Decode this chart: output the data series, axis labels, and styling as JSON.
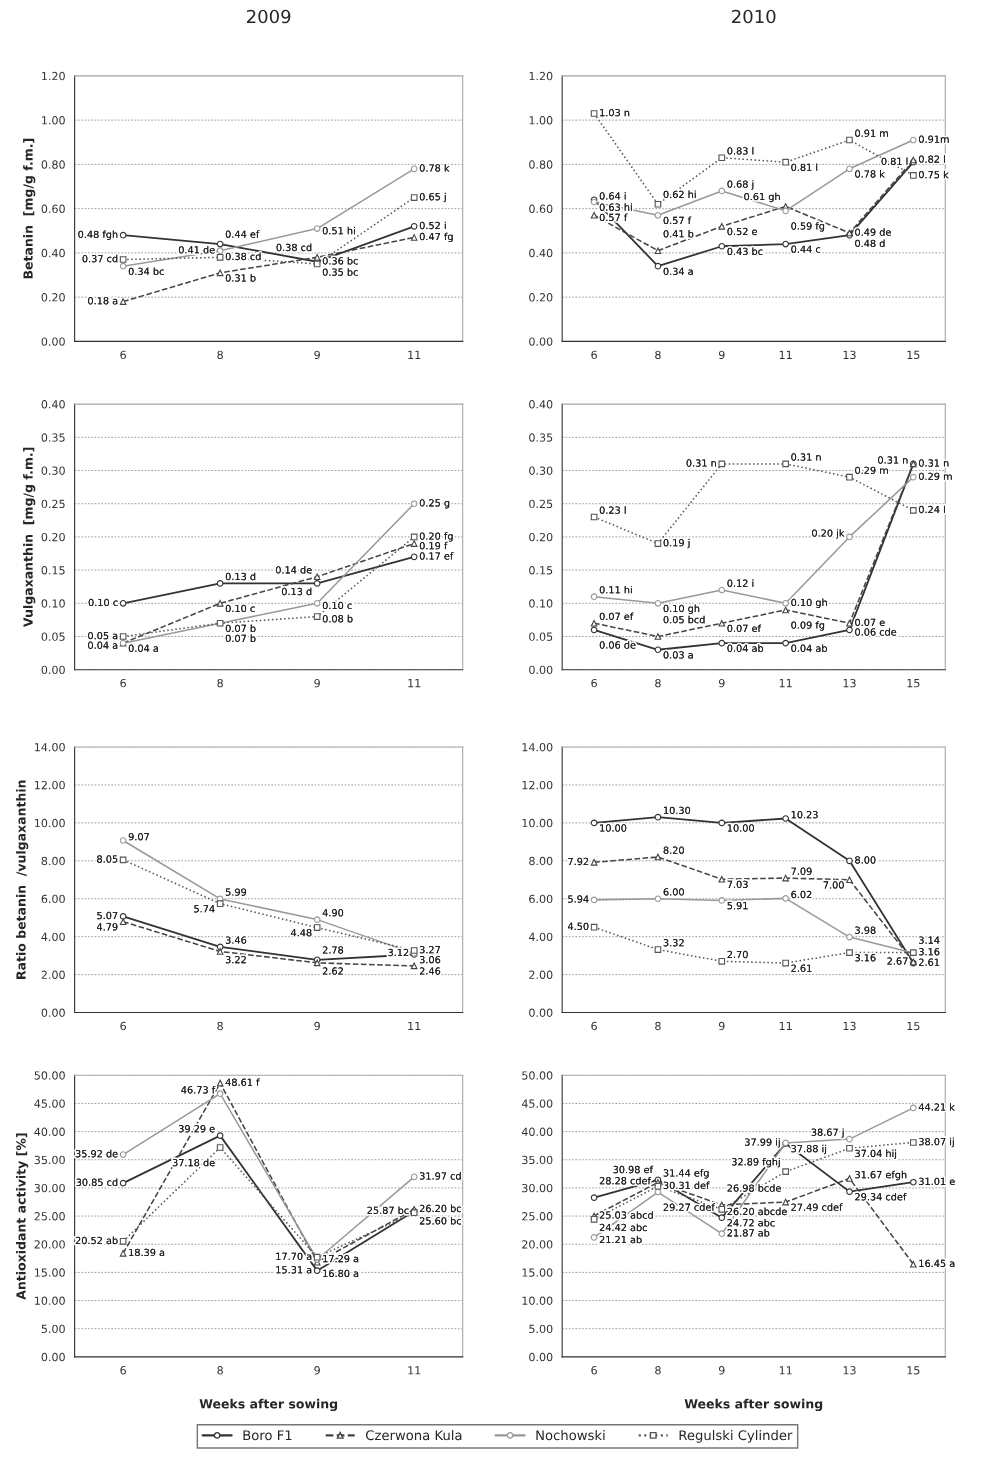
{
  "chart_data": [
    {
      "type": "line",
      "title": "2009",
      "ylabel": "Betanin  [mg/g f.m.]",
      "categories": [
        "6",
        "8",
        "9",
        "11"
      ],
      "ylim": [
        0,
        1.2
      ],
      "yticks": [
        {
          "value": 0,
          "label": "0.00"
        },
        {
          "value": 0.2,
          "label": "0.20"
        },
        {
          "value": 0.4,
          "label": "0.40"
        },
        {
          "value": 0.6,
          "label": "0.60"
        },
        {
          "value": 0.8,
          "label": "0.80"
        },
        {
          "value": 1.0,
          "label": "1.00"
        },
        {
          "value": 1.2,
          "label": "1.20"
        }
      ],
      "grid": "y",
      "series": [
        {
          "color": "#333333",
          "line_style": "solid",
          "marker": "circle",
          "values": [
            0.48,
            0.44,
            0.36,
            0.52
          ],
          "value_labels": [
            "0.48 fgh",
            "0.44 ef",
            "0.36 bc",
            "0.52 i"
          ]
        },
        {
          "color": "#444444",
          "line_style": "dashed",
          "marker": "triangle",
          "values": [
            0.18,
            0.31,
            0.38,
            0.47
          ],
          "value_labels": [
            "0.18 a",
            "0.31 b",
            "0.38 cd",
            "0.47 fg"
          ]
        },
        {
          "color": "#999999",
          "line_style": "solid",
          "marker": "circle",
          "values": [
            0.34,
            0.41,
            0.51,
            0.78
          ],
          "value_labels": [
            "0.34 bc",
            "0.41 de",
            "0.51 hi",
            "0.78 k"
          ]
        },
        {
          "color": "#555555",
          "line_style": "dotted",
          "marker": "square",
          "values": [
            0.37,
            0.38,
            0.35,
            0.65
          ],
          "value_labels": [
            "0.37 cd",
            "0.38 cd",
            "0.35 bc",
            "0.65 j"
          ]
        }
      ]
    },
    {
      "type": "line",
      "title": "2010",
      "categories": [
        "6",
        "8",
        "9",
        "11",
        "13",
        "15"
      ],
      "ylim": [
        0,
        1.2
      ],
      "yticks": [
        {
          "value": 0,
          "label": "0.00"
        },
        {
          "value": 0.2,
          "label": "0.20"
        },
        {
          "value": 0.4,
          "label": "0.40"
        },
        {
          "value": 0.6,
          "label": "0.60"
        },
        {
          "value": 0.8,
          "label": "0.80"
        },
        {
          "value": 1.0,
          "label": "1.00"
        },
        {
          "value": 1.2,
          "label": "1.20"
        }
      ],
      "grid": "y",
      "series": [
        {
          "color": "#333333",
          "line_style": "solid",
          "marker": "circle",
          "values": [
            0.64,
            0.34,
            0.43,
            0.44,
            0.48,
            0.81
          ],
          "value_labels": [
            "0.64 i",
            "0.34 a",
            "0.43 bc",
            "0.44 c",
            "0.48 d",
            "0.81 l"
          ]
        },
        {
          "color": "#444444",
          "line_style": "dashed",
          "marker": "triangle",
          "values": [
            0.57,
            0.41,
            0.52,
            0.61,
            0.49,
            0.82
          ],
          "value_labels": [
            "0.57 f",
            "0.41 b",
            "0.52 e",
            "0.61 gh",
            "0.49 de",
            "0.82 l"
          ]
        },
        {
          "color": "#999999",
          "line_style": "solid",
          "marker": "circle",
          "values": [
            0.63,
            0.57,
            0.68,
            0.59,
            0.78,
            0.91
          ],
          "value_labels": [
            "0.63 hi",
            "0.57 f",
            "0.68 j",
            "0.59 fg",
            "0.78 k",
            "0.91m"
          ]
        },
        {
          "color": "#555555",
          "line_style": "dotted",
          "marker": "square",
          "values": [
            1.03,
            0.62,
            0.83,
            0.81,
            0.91,
            0.75
          ],
          "value_labels": [
            "1.03 n",
            "0.62 hi",
            "0.83 l",
            "0.81 l",
            "0.91 m",
            "0.75 k"
          ]
        }
      ]
    },
    {
      "type": "line",
      "ylabel": "Vulgaxanthin  [mg/g f.m.]",
      "categories": [
        "6",
        "8",
        "9",
        "11"
      ],
      "ylim": [
        0,
        0.4
      ],
      "yticks": [
        {
          "value": 0,
          "label": "0.00"
        },
        {
          "value": 0.05,
          "label": "0.05"
        },
        {
          "value": 0.1,
          "label": "0.10"
        },
        {
          "value": 0.15,
          "label": "0.15"
        },
        {
          "value": 0.2,
          "label": "0.20"
        },
        {
          "value": 0.25,
          "label": "0.25"
        },
        {
          "value": 0.3,
          "label": "0.30"
        },
        {
          "value": 0.35,
          "label": "0.35"
        },
        {
          "value": 0.4,
          "label": "0.40"
        }
      ],
      "grid": "y",
      "series": [
        {
          "color": "#333333",
          "line_style": "solid",
          "marker": "circle",
          "values": [
            0.1,
            0.13,
            0.13,
            0.17
          ],
          "value_labels": [
            "0.10 c",
            "0.13 d",
            "0.13 d",
            "0.17 ef"
          ]
        },
        {
          "color": "#444444",
          "line_style": "dashed",
          "marker": "triangle",
          "values": [
            0.04,
            0.1,
            0.14,
            0.19
          ],
          "value_labels": [
            "0.04 a",
            "0.10 c",
            "0.14 de",
            "0.19 f"
          ]
        },
        {
          "color": "#999999",
          "line_style": "solid",
          "marker": "circle",
          "values": [
            0.04,
            0.07,
            0.1,
            0.25
          ],
          "value_labels": [
            "0.04 a",
            "0.07 b",
            "0.10 c",
            "0.25 g"
          ]
        },
        {
          "color": "#555555",
          "line_style": "dotted",
          "marker": "square",
          "values": [
            0.05,
            0.07,
            0.08,
            0.2
          ],
          "value_labels": [
            "0.05 a",
            "0.07 b",
            "0.08 b",
            "0.20 fg"
          ]
        }
      ]
    },
    {
      "type": "line",
      "categories": [
        "6",
        "8",
        "9",
        "11",
        "13",
        "15"
      ],
      "ylim": [
        0,
        0.4
      ],
      "yticks": [
        {
          "value": 0,
          "label": "0.00"
        },
        {
          "value": 0.05,
          "label": "0.05"
        },
        {
          "value": 0.1,
          "label": "0.10"
        },
        {
          "value": 0.15,
          "label": "0.15"
        },
        {
          "value": 0.2,
          "label": "0.20"
        },
        {
          "value": 0.25,
          "label": "0.25"
        },
        {
          "value": 0.3,
          "label": "0.30"
        },
        {
          "value": 0.35,
          "label": "0.35"
        },
        {
          "value": 0.4,
          "label": "0.40"
        }
      ],
      "grid": "y",
      "series": [
        {
          "color": "#333333",
          "line_style": "solid",
          "marker": "circle",
          "values": [
            0.06,
            0.03,
            0.04,
            0.04,
            0.06,
            0.31
          ],
          "value_labels": [
            "0.06 de",
            "0.03 a",
            "0.04 ab",
            "0.04 ab",
            "0.06 cde",
            "0.31 n"
          ]
        },
        {
          "color": "#444444",
          "line_style": "dashed",
          "marker": "triangle",
          "values": [
            0.07,
            0.05,
            0.07,
            0.09,
            0.07,
            0.31
          ],
          "value_labels": [
            "0.07 ef",
            "0.05 bcd",
            "0.07 ef",
            "0.09 fg",
            "0.07 e",
            "0.31 n"
          ]
        },
        {
          "color": "#999999",
          "line_style": "solid",
          "marker": "circle",
          "values": [
            0.11,
            0.1,
            0.12,
            0.1,
            0.2,
            0.29
          ],
          "value_labels": [
            "0.11 hi",
            "0.10 gh",
            "0.12 i",
            "0.10 gh",
            "0.20 jk",
            "0.29 m"
          ]
        },
        {
          "color": "#555555",
          "line_style": "dotted",
          "marker": "square",
          "values": [
            0.23,
            0.19,
            0.31,
            0.31,
            0.29,
            0.24
          ],
          "value_labels": [
            "0.23 l",
            "0.19 j",
            "0.31 n",
            "0.31 n",
            "0.29 m",
            "0.24 l"
          ]
        }
      ]
    },
    {
      "type": "line",
      "ylabel": "Ratio betanin  /vulgaxanthin",
      "categories": [
        "6",
        "8",
        "9",
        "11"
      ],
      "ylim": [
        0,
        14
      ],
      "yticks": [
        {
          "value": 0,
          "label": "0.00"
        },
        {
          "value": 2,
          "label": "2.00"
        },
        {
          "value": 4,
          "label": "4.00"
        },
        {
          "value": 6,
          "label": "6.00"
        },
        {
          "value": 8,
          "label": "8.00"
        },
        {
          "value": 10,
          "label": "10.00"
        },
        {
          "value": 12,
          "label": "12.00"
        },
        {
          "value": 14,
          "label": "14.00"
        }
      ],
      "grid": "y",
      "series": [
        {
          "color": "#333333",
          "line_style": "solid",
          "marker": "circle",
          "values": [
            5.07,
            3.46,
            2.78,
            3.06
          ],
          "value_labels": [
            "5.07",
            "3.46",
            "2.78",
            "3.06"
          ]
        },
        {
          "color": "#444444",
          "line_style": "dashed",
          "marker": "triangle",
          "values": [
            4.79,
            3.22,
            2.62,
            2.46
          ],
          "value_labels": [
            "4.79",
            "3.22",
            "2.62",
            "2.46"
          ]
        },
        {
          "color": "#999999",
          "line_style": "solid",
          "marker": "circle",
          "values": [
            9.07,
            5.99,
            4.9,
            3.12
          ],
          "value_labels": [
            "9.07",
            "5.99",
            "4.90",
            "3.12"
          ]
        },
        {
          "color": "#555555",
          "line_style": "dotted",
          "marker": "square",
          "values": [
            8.05,
            5.74,
            4.48,
            3.27
          ],
          "value_labels": [
            "8.05",
            "5.74",
            "4.48",
            "3.27"
          ]
        }
      ]
    },
    {
      "type": "line",
      "categories": [
        "6",
        "8",
        "9",
        "11",
        "13",
        "15"
      ],
      "ylim": [
        0,
        14
      ],
      "yticks": [
        {
          "value": 0,
          "label": "0.00"
        },
        {
          "value": 2,
          "label": "2.00"
        },
        {
          "value": 4,
          "label": "4.00"
        },
        {
          "value": 6,
          "label": "6.00"
        },
        {
          "value": 8,
          "label": "8.00"
        },
        {
          "value": 10,
          "label": "10.00"
        },
        {
          "value": 12,
          "label": "12.00"
        },
        {
          "value": 14,
          "label": "14.00"
        }
      ],
      "grid": "y",
      "series": [
        {
          "color": "#333333",
          "line_style": "solid",
          "marker": "circle",
          "values": [
            10.0,
            10.3,
            10.0,
            10.23,
            8.0,
            2.61
          ],
          "value_labels": [
            "10.00",
            "10.30",
            "10.00",
            "10.23",
            "8.00",
            "2.61"
          ]
        },
        {
          "color": "#444444",
          "line_style": "dashed",
          "marker": "triangle",
          "values": [
            7.92,
            8.2,
            7.03,
            7.09,
            7.0,
            2.67
          ],
          "value_labels": [
            "7.92",
            "8.20",
            "7.03",
            "7.09",
            "7.00",
            "2.67"
          ]
        },
        {
          "color": "#999999",
          "line_style": "solid",
          "marker": "circle",
          "values": [
            5.94,
            6.0,
            5.91,
            6.02,
            3.98,
            3.14
          ],
          "value_labels": [
            "5.94",
            "6.00",
            "5.91",
            "6.02",
            "3.98",
            "3.14"
          ]
        },
        {
          "color": "#555555",
          "line_style": "dotted",
          "marker": "square",
          "values": [
            4.5,
            3.32,
            2.7,
            2.61,
            3.16,
            3.16
          ],
          "value_labels": [
            "4.50",
            "3.32",
            "2.70",
            "2.61",
            "3.16",
            "3.16"
          ]
        }
      ]
    },
    {
      "type": "line",
      "ylabel": "Antioxidant activity [%]",
      "xlabel": "Weeks after sowing",
      "categories": [
        "6",
        "8",
        "9",
        "11"
      ],
      "ylim": [
        0,
        50
      ],
      "yticks": [
        {
          "value": 0,
          "label": "0.00"
        },
        {
          "value": 5,
          "label": "5.00"
        },
        {
          "value": 10,
          "label": "10.00"
        },
        {
          "value": 15,
          "label": "15.00"
        },
        {
          "value": 20,
          "label": "20.00"
        },
        {
          "value": 25,
          "label": "25.00"
        },
        {
          "value": 30,
          "label": "30.00"
        },
        {
          "value": 35,
          "label": "35.00"
        },
        {
          "value": 40,
          "label": "40.00"
        },
        {
          "value": 45,
          "label": "45.00"
        },
        {
          "value": 50,
          "label": "50.00"
        }
      ],
      "grid": "y",
      "series": [
        {
          "color": "#333333",
          "line_style": "solid",
          "marker": "circle",
          "values": [
            30.85,
            39.29,
            15.31,
            25.87
          ],
          "value_labels": [
            "30.85 cd",
            "39.29 e",
            "15.31 a",
            "25.87 bc"
          ]
        },
        {
          "color": "#444444",
          "line_style": "dashed",
          "marker": "triangle",
          "values": [
            18.39,
            48.61,
            16.8,
            26.2
          ],
          "value_labels": [
            "18.39 a",
            "48.61 f",
            "16.80 a",
            "26.20 bc"
          ]
        },
        {
          "color": "#999999",
          "line_style": "solid",
          "marker": "circle",
          "values": [
            35.92,
            46.73,
            17.29,
            31.97
          ],
          "value_labels": [
            "35.92 de",
            "46.73 f",
            "17.29 a",
            "31.97 cd"
          ]
        },
        {
          "color": "#555555",
          "line_style": "dotted",
          "marker": "square",
          "values": [
            20.52,
            37.18,
            17.7,
            25.6
          ],
          "value_labels": [
            "20.52 ab",
            "37.18 de",
            "17.70 a",
            "25.60 bc"
          ]
        }
      ]
    },
    {
      "type": "line",
      "xlabel": "Weeks after sowing",
      "categories": [
        "6",
        "8",
        "9",
        "11",
        "13",
        "15"
      ],
      "ylim": [
        0,
        50
      ],
      "yticks": [
        {
          "value": 0,
          "label": "0.00"
        },
        {
          "value": 5,
          "label": "5.00"
        },
        {
          "value": 10,
          "label": "10.00"
        },
        {
          "value": 15,
          "label": "15.00"
        },
        {
          "value": 20,
          "label": "20.00"
        },
        {
          "value": 25,
          "label": "25.00"
        },
        {
          "value": 30,
          "label": "30.00"
        },
        {
          "value": 35,
          "label": "35.00"
        },
        {
          "value": 40,
          "label": "40.00"
        },
        {
          "value": 45,
          "label": "45.00"
        },
        {
          "value": 50,
          "label": "50.00"
        }
      ],
      "grid": "y",
      "legend": "bottom",
      "series": [
        {
          "name": "Boro F1",
          "color": "#333333",
          "line_style": "solid",
          "marker": "circle",
          "values": [
            28.28,
            31.44,
            24.72,
            37.88,
            29.34,
            31.01
          ],
          "value_labels": [
            "28.28 cdef",
            "31.44 efg",
            "24.72 abc",
            "37.88 ij",
            "29.34 cdef",
            "31.01 e"
          ]
        },
        {
          "name": "Czerwona Kula",
          "color": "#444444",
          "line_style": "dashed",
          "marker": "triangle",
          "values": [
            25.03,
            30.98,
            26.98,
            27.49,
            31.67,
            16.45
          ],
          "value_labels": [
            "25.03 abcd",
            "30.98 ef",
            "26.98 bcde",
            "27.49 cdef",
            "31.67 efgh",
            "16.45 a"
          ]
        },
        {
          "name": "Nochowski",
          "color": "#999999",
          "line_style": "solid",
          "marker": "circle",
          "values": [
            21.21,
            29.27,
            21.87,
            37.99,
            38.67,
            44.21
          ],
          "value_labels": [
            "21.21 ab",
            "29.27 cdef",
            "21.87 ab",
            "37.99 ij",
            "38.67 j",
            "44.21 k"
          ]
        },
        {
          "name": "Regulski Cylinder",
          "color": "#555555",
          "line_style": "dotted",
          "marker": "square",
          "values": [
            24.42,
            30.31,
            26.2,
            32.89,
            37.04,
            38.07
          ],
          "value_labels": [
            "24.42 abc",
            "30.31 def",
            "26.20 abcde",
            "32.89 fghj",
            "37.04 hij",
            "38.07 ij"
          ]
        }
      ]
    }
  ]
}
